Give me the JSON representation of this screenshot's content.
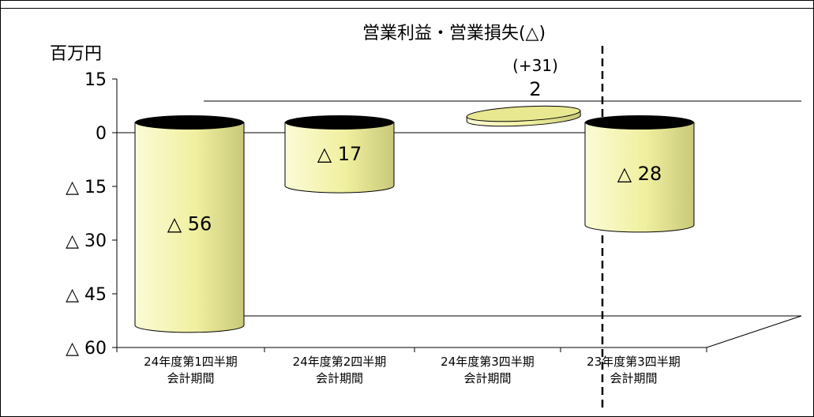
{
  "chart_data": {
    "type": "bar",
    "title": "営業利益・営業損失(△)",
    "ylabel": "百万円",
    "ylim": [
      -60,
      15
    ],
    "yticks": [
      {
        "value": 15,
        "label": "15"
      },
      {
        "value": 0,
        "label": "0"
      },
      {
        "value": -15,
        "label": "△ 15"
      },
      {
        "value": -30,
        "label": "△ 30"
      },
      {
        "value": -45,
        "label": "△ 45"
      },
      {
        "value": -60,
        "label": "△ 60"
      }
    ],
    "categories": [
      [
        "24年度第1四半期",
        "会計期間"
      ],
      [
        "24年度第2四半期",
        "会計期間"
      ],
      [
        "24年度第3四半期",
        "会計期間"
      ],
      [
        "23年度第3四半期",
        "会計期間"
      ]
    ],
    "values": [
      -56,
      -17,
      2,
      -28
    ],
    "data_labels": [
      "△ 56",
      "△ 17",
      "2",
      "△ 28"
    ],
    "annotations": [
      {
        "category_index": 2,
        "text": "(+31)"
      }
    ],
    "bar_color": "#f0f0a0",
    "divider": {
      "between": [
        2,
        3
      ],
      "style": "dashed"
    },
    "grid": false,
    "legend": "none"
  }
}
